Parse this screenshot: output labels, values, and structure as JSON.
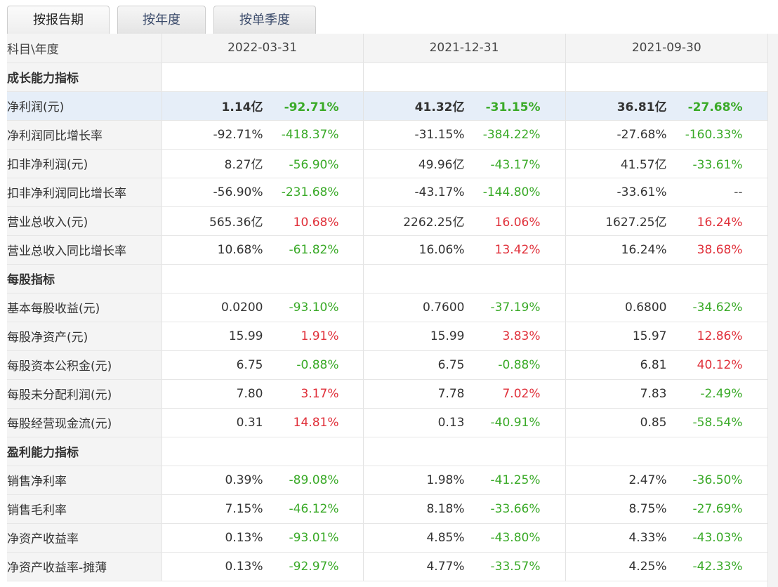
{
  "tabs": [
    "按报告期",
    "按年度",
    "按单季度"
  ],
  "header": {
    "label": "科目\\年度",
    "periods": [
      "2022-03-31",
      "2021-12-31",
      "2021-09-30"
    ]
  },
  "colors": {
    "negative": "#3aaa28",
    "positive": "#e0303a",
    "highlight_row": "#e6eef8"
  },
  "rows": [
    {
      "section": "成长能力指标"
    },
    {
      "label": "净利润(元)",
      "highlight": true,
      "cells": [
        {
          "v": "1.14亿",
          "p": "-92.71%",
          "s": "neg"
        },
        {
          "v": "41.32亿",
          "p": "-31.15%",
          "s": "neg"
        },
        {
          "v": "36.81亿",
          "p": "-27.68%",
          "s": "neg"
        }
      ]
    },
    {
      "label": "净利润同比增长率",
      "cells": [
        {
          "v": "-92.71%",
          "p": "-418.37%",
          "s": "neg"
        },
        {
          "v": "-31.15%",
          "p": "-384.22%",
          "s": "neg"
        },
        {
          "v": "-27.68%",
          "p": "-160.33%",
          "s": "neg"
        }
      ]
    },
    {
      "label": "扣非净利润(元)",
      "cells": [
        {
          "v": "8.27亿",
          "p": "-56.90%",
          "s": "neg"
        },
        {
          "v": "49.96亿",
          "p": "-43.17%",
          "s": "neg"
        },
        {
          "v": "41.57亿",
          "p": "-33.61%",
          "s": "neg"
        }
      ]
    },
    {
      "label": "扣非净利润同比增长率",
      "cells": [
        {
          "v": "-56.90%",
          "p": "-231.68%",
          "s": "neg"
        },
        {
          "v": "-43.17%",
          "p": "-144.80%",
          "s": "neg"
        },
        {
          "v": "-33.61%",
          "p": "--",
          "s": "neu"
        }
      ]
    },
    {
      "label": "营业总收入(元)",
      "cells": [
        {
          "v": "565.36亿",
          "p": "10.68%",
          "s": "pos"
        },
        {
          "v": "2262.25亿",
          "p": "16.06%",
          "s": "pos"
        },
        {
          "v": "1627.25亿",
          "p": "16.24%",
          "s": "pos"
        }
      ]
    },
    {
      "label": "营业总收入同比增长率",
      "cells": [
        {
          "v": "10.68%",
          "p": "-61.82%",
          "s": "neg"
        },
        {
          "v": "16.06%",
          "p": "13.42%",
          "s": "pos"
        },
        {
          "v": "16.24%",
          "p": "38.68%",
          "s": "pos"
        }
      ]
    },
    {
      "section": "每股指标"
    },
    {
      "label": "基本每股收益(元)",
      "cells": [
        {
          "v": "0.0200",
          "p": "-93.10%",
          "s": "neg"
        },
        {
          "v": "0.7600",
          "p": "-37.19%",
          "s": "neg"
        },
        {
          "v": "0.6800",
          "p": "-34.62%",
          "s": "neg"
        }
      ]
    },
    {
      "label": "每股净资产(元)",
      "cells": [
        {
          "v": "15.99",
          "p": "1.91%",
          "s": "pos"
        },
        {
          "v": "15.99",
          "p": "3.83%",
          "s": "pos"
        },
        {
          "v": "15.97",
          "p": "12.86%",
          "s": "pos"
        }
      ]
    },
    {
      "label": "每股资本公积金(元)",
      "cells": [
        {
          "v": "6.75",
          "p": "-0.88%",
          "s": "neg"
        },
        {
          "v": "6.75",
          "p": "-0.88%",
          "s": "neg"
        },
        {
          "v": "6.81",
          "p": "40.12%",
          "s": "pos"
        }
      ]
    },
    {
      "label": "每股未分配利润(元)",
      "cells": [
        {
          "v": "7.80",
          "p": "3.17%",
          "s": "pos"
        },
        {
          "v": "7.78",
          "p": "7.02%",
          "s": "pos"
        },
        {
          "v": "7.83",
          "p": "-2.49%",
          "s": "neg"
        }
      ]
    },
    {
      "label": "每股经营现金流(元)",
      "cells": [
        {
          "v": "0.31",
          "p": "14.81%",
          "s": "pos"
        },
        {
          "v": "0.13",
          "p": "-40.91%",
          "s": "neg"
        },
        {
          "v": "0.85",
          "p": "-58.54%",
          "s": "neg"
        }
      ]
    },
    {
      "section": "盈利能力指标"
    },
    {
      "label": "销售净利率",
      "cells": [
        {
          "v": "0.39%",
          "p": "-89.08%",
          "s": "neg"
        },
        {
          "v": "1.98%",
          "p": "-41.25%",
          "s": "neg"
        },
        {
          "v": "2.47%",
          "p": "-36.50%",
          "s": "neg"
        }
      ]
    },
    {
      "label": "销售毛利率",
      "cells": [
        {
          "v": "7.15%",
          "p": "-46.12%",
          "s": "neg"
        },
        {
          "v": "8.18%",
          "p": "-33.66%",
          "s": "neg"
        },
        {
          "v": "8.75%",
          "p": "-27.69%",
          "s": "neg"
        }
      ]
    },
    {
      "label": "净资产收益率",
      "cells": [
        {
          "v": "0.13%",
          "p": "-93.01%",
          "s": "neg"
        },
        {
          "v": "4.85%",
          "p": "-43.80%",
          "s": "neg"
        },
        {
          "v": "4.33%",
          "p": "-43.03%",
          "s": "neg"
        }
      ]
    },
    {
      "label": "净资产收益率-摊薄",
      "cells": [
        {
          "v": "0.13%",
          "p": "-92.97%",
          "s": "neg"
        },
        {
          "v": "4.77%",
          "p": "-33.57%",
          "s": "neg"
        },
        {
          "v": "4.25%",
          "p": "-42.33%",
          "s": "neg"
        }
      ]
    }
  ]
}
